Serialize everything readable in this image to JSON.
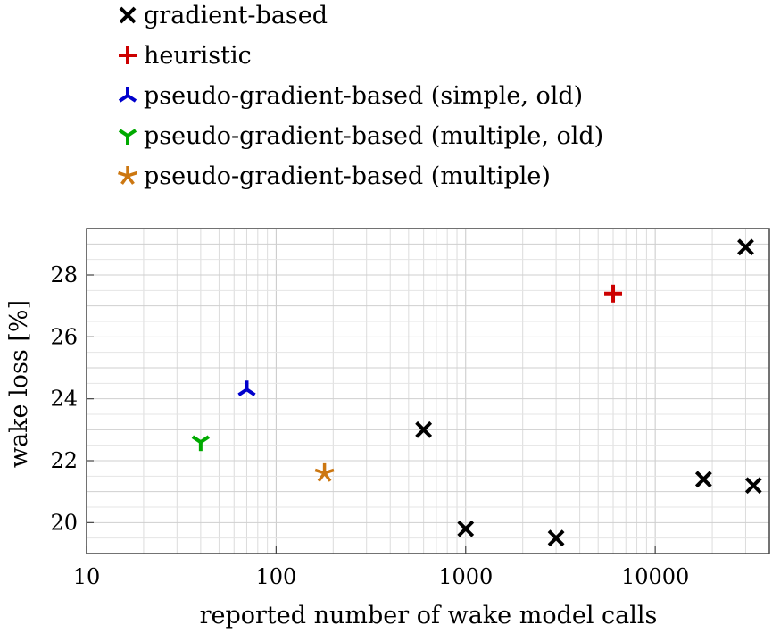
{
  "chart_data": {
    "type": "scatter",
    "title": "",
    "xlabel": "reported number of wake model calls",
    "ylabel": "wake loss [%]",
    "x_scale": "log",
    "xlim": [
      10,
      40000
    ],
    "ylim": [
      19,
      29.5
    ],
    "x_ticks": [
      10,
      100,
      1000,
      10000
    ],
    "x_tick_labels": [
      "10",
      "100",
      "1000",
      "10000"
    ],
    "y_ticks": [
      20,
      22,
      24,
      26,
      28
    ],
    "y_tick_labels": [
      "20",
      "22",
      "24",
      "26",
      "28"
    ],
    "grid": true,
    "legend_position": "top, above plot",
    "series": [
      {
        "name": "gradient-based",
        "marker": "x",
        "color": "#000000",
        "points": [
          {
            "x": 600,
            "y": 23.0
          },
          {
            "x": 1000,
            "y": 19.8
          },
          {
            "x": 3000,
            "y": 19.5
          },
          {
            "x": 18000,
            "y": 21.4
          },
          {
            "x": 30000,
            "y": 28.9
          },
          {
            "x": 33000,
            "y": 21.2
          }
        ]
      },
      {
        "name": "heuristic",
        "marker": "plus",
        "color": "#cc0000",
        "points": [
          {
            "x": 6000,
            "y": 27.4
          }
        ]
      },
      {
        "name": "pseudo-gradient-based (simple, old)",
        "marker": "tri-up",
        "color": "#0000cc",
        "points": [
          {
            "x": 70,
            "y": 24.3
          }
        ]
      },
      {
        "name": "pseudo-gradient-based (multiple, old)",
        "marker": "tri-down",
        "color": "#00aa00",
        "points": [
          {
            "x": 40,
            "y": 22.6
          }
        ]
      },
      {
        "name": "pseudo-gradient-based (multiple)",
        "marker": "asterisk",
        "color": "#cc7711",
        "points": [
          {
            "x": 180,
            "y": 21.6
          }
        ]
      }
    ]
  }
}
